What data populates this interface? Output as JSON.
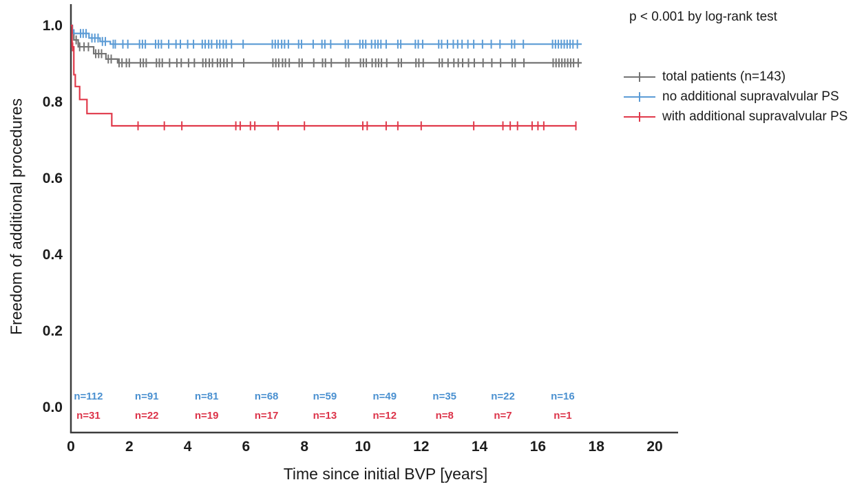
{
  "chart_data": {
    "type": "line",
    "subtype": "kaplan-meier-step",
    "title": "",
    "annotation": "p < 0.001 by log-rank test",
    "xlabel": "Time since initial BVP [years]",
    "ylabel": "Freedom of additional procedures",
    "xlim": [
      0,
      20
    ],
    "ylim": [
      0.0,
      1.0
    ],
    "x_ticks": [
      "0",
      "2",
      "4",
      "6",
      "8",
      "10",
      "12",
      "14",
      "16",
      "18",
      "20"
    ],
    "y_ticks": [
      "0.0",
      "0.2",
      "0.4",
      "0.6",
      "0.8",
      "1.0"
    ],
    "grid": false,
    "legend_position": "upper-right-outside",
    "axis_color": "#3c3c3c",
    "series": [
      {
        "name": "total patients (n=143)",
        "color": "#737373",
        "end_x": 17.5,
        "steps": [
          [
            0,
            1.0
          ],
          [
            0.05,
            0.98
          ],
          [
            0.1,
            0.962
          ],
          [
            0.25,
            0.944
          ],
          [
            0.78,
            0.926
          ],
          [
            1.2,
            0.912
          ],
          [
            1.6,
            0.902
          ]
        ],
        "censor_x": [
          0.18,
          0.3,
          0.45,
          0.6,
          0.85,
          0.95,
          1.05,
          1.28,
          1.38,
          1.65,
          1.75,
          1.9,
          2.0,
          2.38,
          2.48,
          2.58,
          2.93,
          3.03,
          3.13,
          3.38,
          3.63,
          3.78,
          4.03,
          4.23,
          4.52,
          4.62,
          4.74,
          4.85,
          5.02,
          5.12,
          5.24,
          5.35,
          5.52,
          5.92,
          6.92,
          7.02,
          7.12,
          7.25,
          7.35,
          7.48,
          7.82,
          7.92,
          8.32,
          8.62,
          8.72,
          8.92,
          9.42,
          9.52,
          9.92,
          10.02,
          10.12,
          10.32,
          10.44,
          10.54,
          10.64,
          10.82,
          11.22,
          11.32,
          11.82,
          11.92,
          12.07,
          12.62,
          12.72,
          12.92,
          13.12,
          13.27,
          13.42,
          13.62,
          13.82,
          14.12,
          14.42,
          14.72,
          15.12,
          15.22,
          15.52,
          16.52,
          16.62,
          16.72,
          16.82,
          16.92,
          17.02,
          17.12,
          17.22,
          17.38
        ]
      },
      {
        "name": "no additional supravalvular PS",
        "color": "#5b9bd5",
        "end_x": 17.5,
        "steps": [
          [
            0,
            1.0
          ],
          [
            0.05,
            0.988
          ],
          [
            0.1,
            0.979
          ],
          [
            0.62,
            0.967
          ],
          [
            1.0,
            0.958
          ],
          [
            1.35,
            0.951
          ]
        ],
        "censor_x": [
          0.33,
          0.42,
          0.52,
          0.72,
          0.82,
          0.93,
          1.08,
          1.18,
          1.45,
          1.52,
          1.78,
          1.95,
          2.35,
          2.45,
          2.55,
          2.9,
          3.0,
          3.1,
          3.35,
          3.6,
          3.75,
          4.0,
          4.2,
          4.5,
          4.6,
          4.72,
          4.82,
          5.0,
          5.1,
          5.22,
          5.32,
          5.5,
          5.9,
          6.9,
          7.0,
          7.1,
          7.22,
          7.32,
          7.45,
          7.8,
          7.9,
          8.3,
          8.6,
          8.7,
          8.9,
          9.4,
          9.5,
          9.9,
          10.0,
          10.1,
          10.3,
          10.42,
          10.52,
          10.62,
          10.8,
          11.2,
          11.3,
          11.8,
          11.9,
          12.05,
          12.6,
          12.7,
          12.9,
          13.1,
          13.25,
          13.4,
          13.6,
          13.8,
          14.1,
          14.4,
          14.7,
          15.1,
          15.2,
          15.5,
          16.5,
          16.6,
          16.7,
          16.8,
          16.9,
          17.0,
          17.1,
          17.2,
          17.35
        ]
      },
      {
        "name": "with additional supravalvular PS",
        "color": "#e0394a",
        "end_x": 17.3,
        "steps": [
          [
            0,
            1.0
          ],
          [
            0.04,
            0.944
          ],
          [
            0.1,
            0.871
          ],
          [
            0.15,
            0.84
          ],
          [
            0.3,
            0.806
          ],
          [
            0.55,
            0.769
          ],
          [
            1.4,
            0.737
          ]
        ],
        "censor_x": [
          0.06,
          2.3,
          3.2,
          3.8,
          5.65,
          5.8,
          6.15,
          6.3,
          7.1,
          8.0,
          10.0,
          10.15,
          10.8,
          11.2,
          12.0,
          13.8,
          14.8,
          15.05,
          15.3,
          15.8,
          16.0,
          16.2,
          17.3
        ]
      }
    ],
    "at_risk": {
      "times": [
        0.6,
        2.6,
        4.65,
        6.7,
        8.7,
        10.75,
        12.8,
        14.8,
        16.85
      ],
      "rows": [
        {
          "series": "no additional supravalvular PS",
          "color": "#4a90d0",
          "values": [
            "n=112",
            "n=91",
            "n=81",
            "n=68",
            "n=59",
            "n=49",
            "n=35",
            "n=22",
            "n=16"
          ]
        },
        {
          "series": "with additional supravalvular PS",
          "color": "#dc3349",
          "values": [
            "n=31",
            "n=22",
            "n=19",
            "n=17",
            "n=13",
            "n=12",
            "n=8",
            "n=7",
            "n=1"
          ]
        }
      ]
    }
  }
}
